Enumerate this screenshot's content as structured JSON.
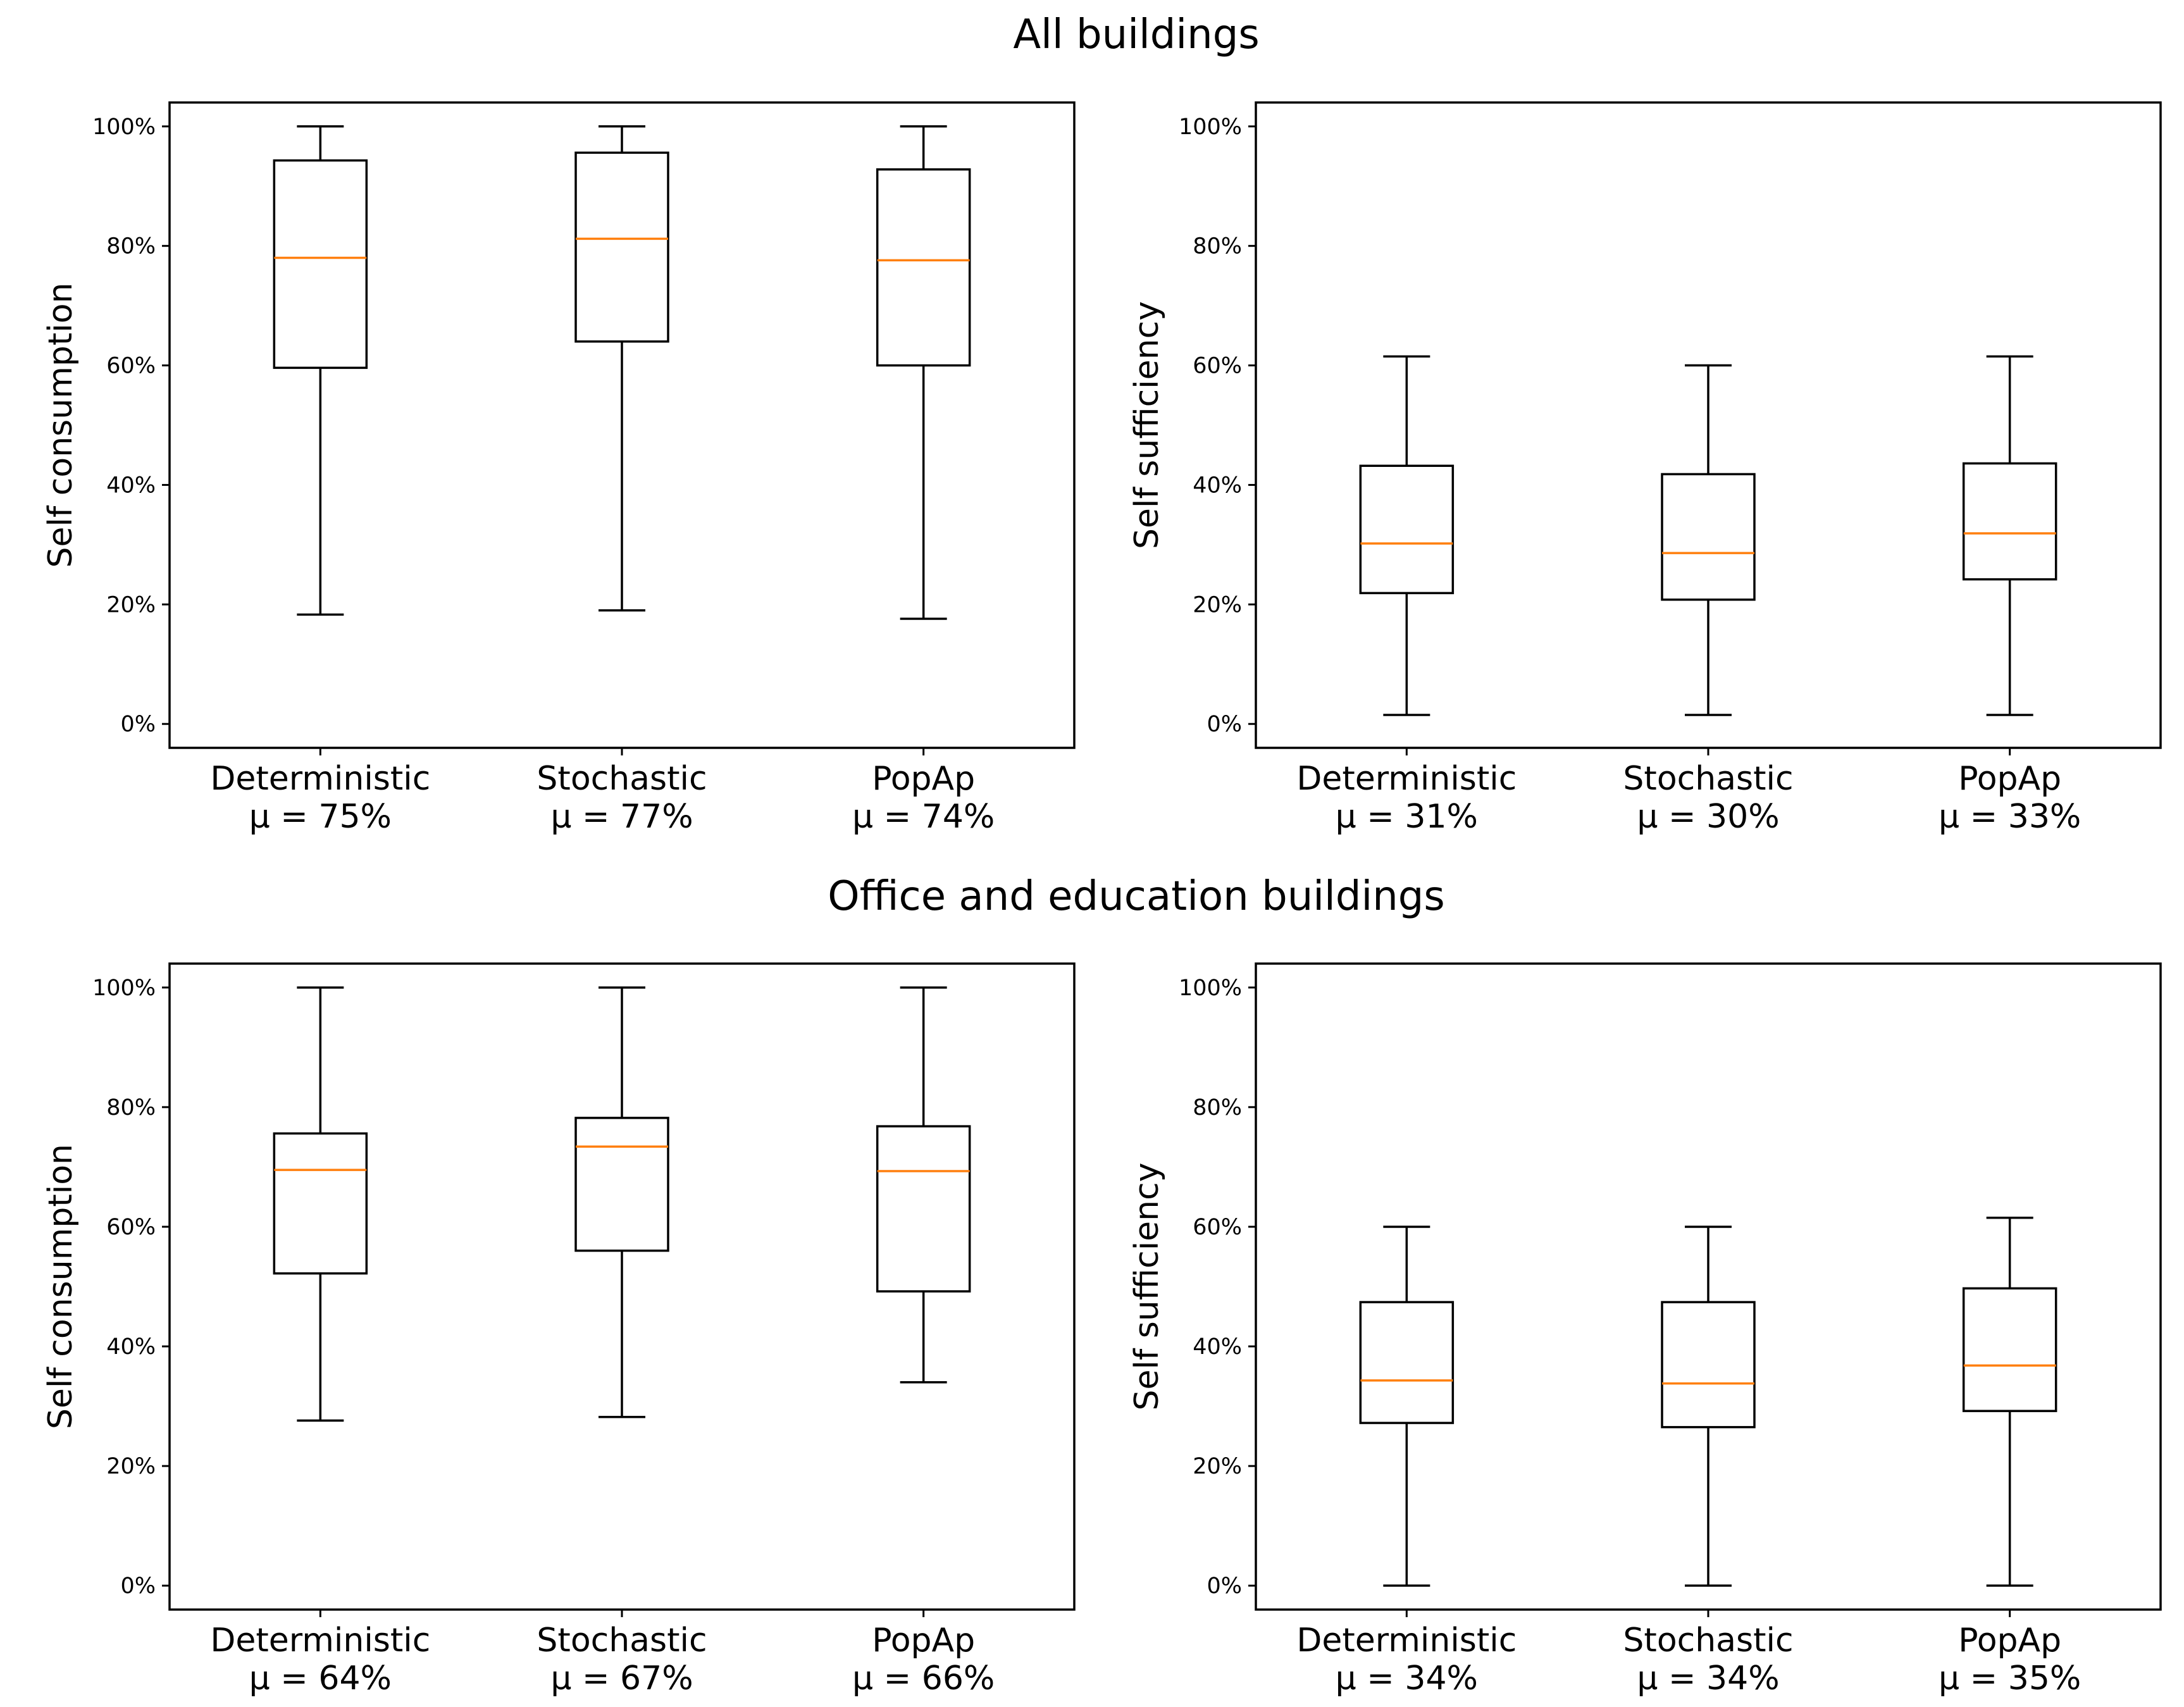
{
  "sections": [
    {
      "title": "All buildings"
    },
    {
      "title": "Office and education buildings"
    }
  ],
  "chart_data": [
    {
      "type": "box",
      "section": 0,
      "ylabel": "Self consumption",
      "yticks": [
        "0%",
        "20%",
        "40%",
        "60%",
        "80%",
        "100%"
      ],
      "ylim": [
        -4,
        104
      ],
      "categories": [
        "Deterministic",
        "Stochastic",
        "PopAp"
      ],
      "means": [
        "μ = 75%",
        "μ = 77%",
        "μ = 74%"
      ],
      "boxes": [
        {
          "whisker_low": 18.3,
          "q1": 59.6,
          "median": 78.0,
          "q3": 94.3,
          "whisker_high": 100
        },
        {
          "whisker_low": 19.0,
          "q1": 64.0,
          "median": 81.2,
          "q3": 95.6,
          "whisker_high": 100
        },
        {
          "whisker_low": 17.6,
          "q1": 60.0,
          "median": 77.6,
          "q3": 92.8,
          "whisker_high": 100
        }
      ]
    },
    {
      "type": "box",
      "section": 0,
      "ylabel": "Self sufficiency",
      "yticks": [
        "0%",
        "20%",
        "40%",
        "60%",
        "80%",
        "100%"
      ],
      "ylim": [
        -4,
        104
      ],
      "categories": [
        "Deterministic",
        "Stochastic",
        "PopAp"
      ],
      "means": [
        "μ = 31%",
        "μ = 30%",
        "μ = 33%"
      ],
      "boxes": [
        {
          "whisker_low": 1.5,
          "q1": 21.9,
          "median": 30.2,
          "q3": 43.2,
          "whisker_high": 61.5
        },
        {
          "whisker_low": 1.5,
          "q1": 20.8,
          "median": 28.6,
          "q3": 41.8,
          "whisker_high": 60.0
        },
        {
          "whisker_low": 1.5,
          "q1": 24.2,
          "median": 31.9,
          "q3": 43.6,
          "whisker_high": 61.5
        }
      ]
    },
    {
      "type": "box",
      "section": 1,
      "ylabel": "Self consumption",
      "yticks": [
        "0%",
        "20%",
        "40%",
        "60%",
        "80%",
        "100%"
      ],
      "ylim": [
        -4,
        104
      ],
      "categories": [
        "Deterministic",
        "Stochastic",
        "PopAp"
      ],
      "means": [
        "μ = 64%",
        "μ = 67%",
        "μ = 66%"
      ],
      "boxes": [
        {
          "whisker_low": 27.6,
          "q1": 52.2,
          "median": 69.5,
          "q3": 75.6,
          "whisker_high": 100
        },
        {
          "whisker_low": 28.2,
          "q1": 56.0,
          "median": 73.4,
          "q3": 78.2,
          "whisker_high": 100
        },
        {
          "whisker_low": 34.0,
          "q1": 49.2,
          "median": 69.3,
          "q3": 76.8,
          "whisker_high": 100
        }
      ]
    },
    {
      "type": "box",
      "section": 1,
      "ylabel": "Self sufficiency",
      "yticks": [
        "0%",
        "20%",
        "40%",
        "60%",
        "80%",
        "100%"
      ],
      "ylim": [
        -4,
        104
      ],
      "categories": [
        "Deterministic",
        "Stochastic",
        "PopAp"
      ],
      "means": [
        "μ = 34%",
        "μ = 34%",
        "μ = 35%"
      ],
      "boxes": [
        {
          "whisker_low": 0.0,
          "q1": 27.2,
          "median": 34.3,
          "q3": 47.4,
          "whisker_high": 60.0
        },
        {
          "whisker_low": 0.0,
          "q1": 26.5,
          "median": 33.8,
          "q3": 47.4,
          "whisker_high": 60.0
        },
        {
          "whisker_low": 0.0,
          "q1": 29.2,
          "median": 36.8,
          "q3": 49.7,
          "whisker_high": 61.5
        }
      ]
    }
  ],
  "colors": {
    "median": "#ff7f0e",
    "box": "#000000",
    "axes": "#000000"
  }
}
